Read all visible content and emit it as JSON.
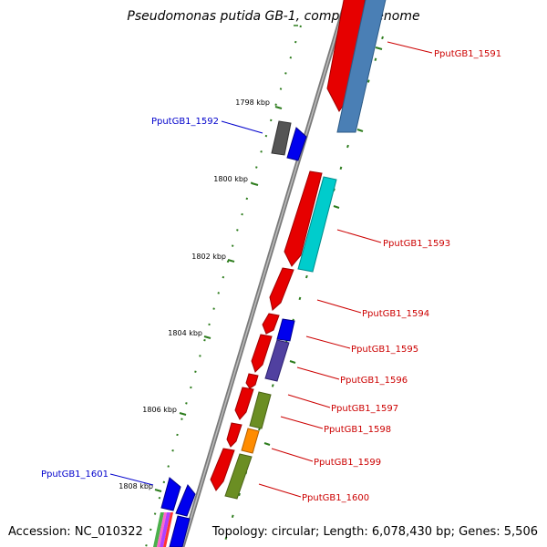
{
  "title": "Pseudomonas putida GB-1, complete genome",
  "footer": {
    "accession": "Accession: NC_010322",
    "topology": "Topology: circular; Length: 6,078,430 bp; Genes: 5,506"
  },
  "colors": {
    "backbone": "#8a8a8a",
    "ticks": "#2e7d1e",
    "forward_label": "#cc0000",
    "reverse_label": "#0000cc"
  },
  "tick_labels": [
    "1798 kbp",
    "1800 kbp",
    "1802 kbp",
    "1804 kbp",
    "1806 kbp",
    "1808 kbp"
  ],
  "genes": [
    {
      "label": "PputGB1_1591",
      "color": "#cc0000",
      "icon": "red-arrow"
    },
    {
      "label": "PputGB1_1592",
      "color": "#0000cc",
      "icon": "blue-arrow"
    },
    {
      "label": "PputGB1_1593",
      "color": "#cc0000",
      "icon": "red-arrow"
    },
    {
      "label": "PputGB1_1594",
      "color": "#cc0000",
      "icon": "red-arrow"
    },
    {
      "label": "PputGB1_1595",
      "color": "#cc0000",
      "icon": "red-arrow"
    },
    {
      "label": "PputGB1_1596",
      "color": "#cc0000",
      "icon": "red-arrow"
    },
    {
      "label": "PputGB1_1597",
      "color": "#cc0000",
      "icon": "red-arrow"
    },
    {
      "label": "PputGB1_1598",
      "color": "#cc0000",
      "icon": "red-arrow"
    },
    {
      "label": "PputGB1_1599",
      "color": "#cc0000",
      "icon": "red-arrow"
    },
    {
      "label": "PputGB1_1600",
      "color": "#cc0000",
      "icon": "red-arrow"
    },
    {
      "label": "PputGB1_1601",
      "color": "#0000cc",
      "icon": "blue-arrow"
    }
  ]
}
